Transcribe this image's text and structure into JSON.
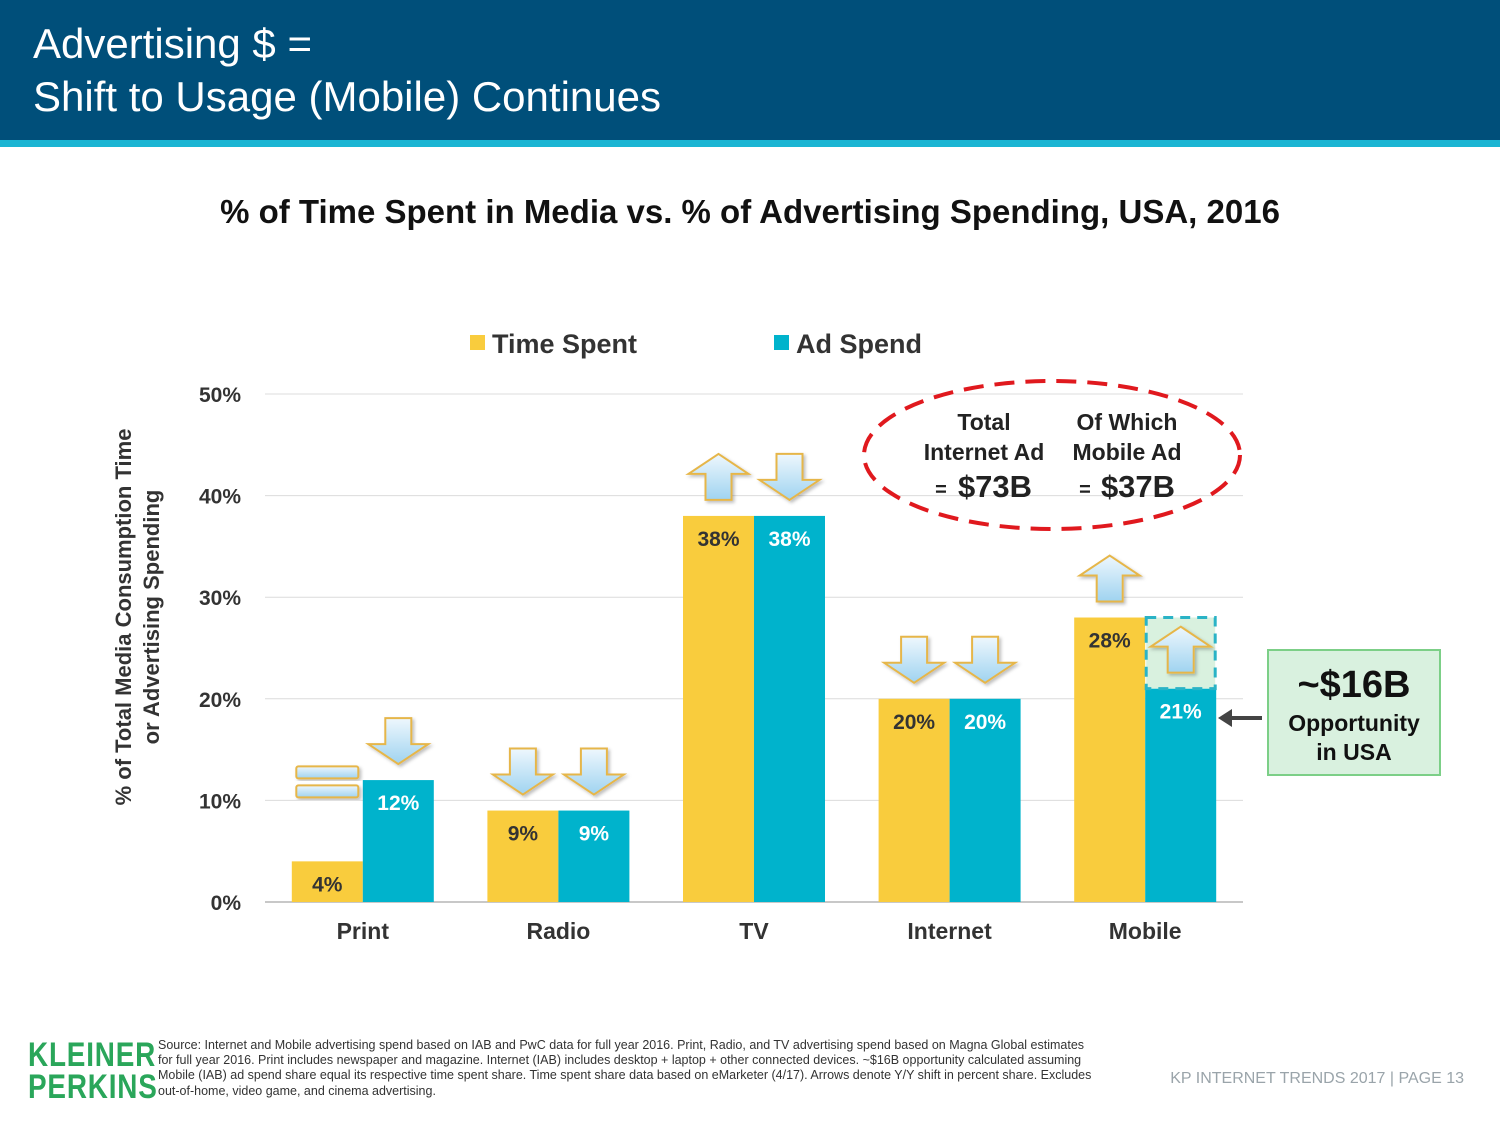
{
  "header": {
    "title_line1": "Advertising $ =",
    "title_line2": "Shift to Usage (Mobile) Continues"
  },
  "chart_data": {
    "type": "bar",
    "title": "% of Time Spent in Media vs. % of Advertising Spending, USA, 2016",
    "ylabel_line1": "% of Total Media Consumption Time",
    "ylabel_line2": "or Advertising Spending",
    "categories": [
      "Print",
      "Radio",
      "TV",
      "Internet",
      "Mobile"
    ],
    "series": [
      {
        "name": "Time Spent",
        "color": "#f9cc3d",
        "values": [
          4,
          9,
          38,
          20,
          28
        ],
        "labels": [
          "4%",
          "9%",
          "38%",
          "20%",
          "28%"
        ],
        "shift": [
          "flat",
          "down",
          "up",
          "down",
          "up"
        ]
      },
      {
        "name": "Ad Spend",
        "color": "#00b3cc",
        "values": [
          12,
          9,
          38,
          20,
          21
        ],
        "labels": [
          "12%",
          "9%",
          "38%",
          "20%",
          "21%"
        ],
        "shift": [
          "down",
          "down",
          "down",
          "down",
          "up"
        ]
      }
    ],
    "ylim": [
      0,
      50
    ],
    "yticks": [
      0,
      10,
      20,
      30,
      40,
      50
    ],
    "ytick_labels": [
      "0%",
      "10%",
      "20%",
      "30%",
      "40%",
      "50%"
    ],
    "grid": true,
    "legend": "top",
    "mobile_gap": {
      "from": 21,
      "to": 28
    }
  },
  "annotations": {
    "internet_line1": "Total",
    "internet_line2": "Internet Ad",
    "internet_eq": "=",
    "internet_value": "$73B",
    "mobile_line1": "Of Which",
    "mobile_line2": "Mobile Ad",
    "mobile_eq": "=",
    "mobile_value": "$37B",
    "opportunity_value": "~$16B",
    "opportunity_line1": "Opportunity",
    "opportunity_line2": "in USA"
  },
  "colors": {
    "header": "#004f7a",
    "accent": "#1bb5d3",
    "time_spent": "#f9cc3d",
    "ad_spend": "#00b3cc",
    "logo": "#2aa65a"
  },
  "footer": {
    "logo_line1": "KLEINER",
    "logo_line2": "PERKINS",
    "source": "Source: Internet and Mobile advertising spend based on IAB and PwC data for full year 2016. Print, Radio, and TV advertising spend based on Magna Global estimates for full year 2016. Print includes newspaper and magazine. Internet (IAB) includes desktop + laptop + other connected devices. ~$16B opportunity calculated assuming Mobile (IAB) ad spend share equal its respective time spent share. Time spent share data based on eMarketer (4/17). Arrows denote Y/Y shift in percent share. Excludes out-of-home, video game, and cinema advertising.",
    "page": "KP INTERNET TRENDS 2017   |   PAGE 13"
  }
}
